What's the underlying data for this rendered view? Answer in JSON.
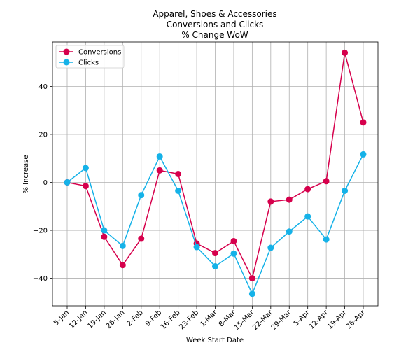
{
  "chart_data": {
    "type": "line",
    "title_lines": [
      "Apparel, Shoes & Accessories",
      "Conversions and Clicks",
      "% Change WoW"
    ],
    "xlabel": "Week Start Date",
    "ylabel": "% Increase",
    "categories": [
      "5-Jan",
      "12-Jan",
      "19-Jan",
      "26-Jan",
      "2-Feb",
      "9-Feb",
      "16-Feb",
      "23-Feb",
      "1-Mar",
      "8-Mar",
      "15-Mar",
      "22-Mar",
      "29-Mar",
      "5-Apr",
      "12-Apr",
      "19-Apr",
      "26-Apr"
    ],
    "ylim": [
      -51.5,
      58.5
    ],
    "yticks": [
      -40,
      -20,
      0,
      20,
      40
    ],
    "ytick_labels": [
      "−40",
      "−20",
      "0",
      "20",
      "40"
    ],
    "grid": true,
    "legend_position": "upper-left",
    "series": [
      {
        "name": "Conversions",
        "color": "#d6004c",
        "values": [
          0,
          -1.5,
          -22.7,
          -34.5,
          -23.5,
          5,
          3.5,
          -25.5,
          -29.5,
          -24.5,
          -40,
          -8,
          -7.2,
          -2.8,
          0.5,
          54,
          25
        ]
      },
      {
        "name": "Clicks",
        "color": "#15b2e8",
        "values": [
          0,
          6,
          -20,
          -26.5,
          -5.3,
          10.8,
          -3.5,
          -27,
          -35,
          -29.7,
          -46.5,
          -27.3,
          -20.5,
          -14.2,
          -23.8,
          -3.5,
          11.7
        ]
      }
    ]
  }
}
